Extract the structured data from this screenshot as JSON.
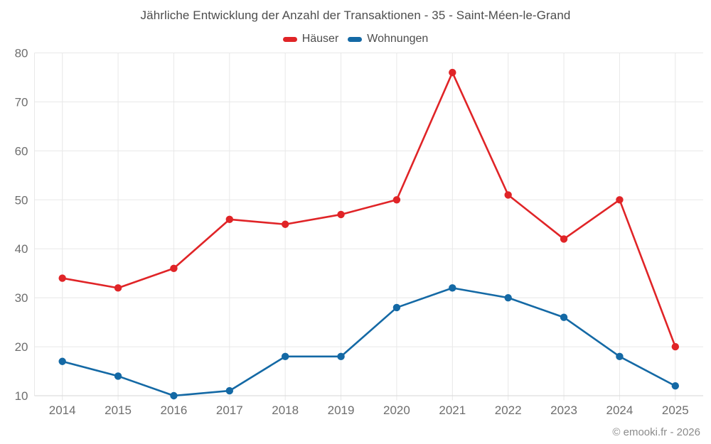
{
  "title": "Jährliche Entwicklung der Anzahl der Transaktionen - 35 - Saint-Méen-le-Grand",
  "footer": {
    "copyright": "© emooki.fr - 2026"
  },
  "colors": {
    "hauser_red": "#e02427",
    "wohnungen_blue": "#1469a5",
    "grid": "#e8e8e8",
    "axis_line": "#d6d6d6",
    "title_text": "#4d4d4d",
    "axis_text": "#6e6e6e",
    "footer_text": "#8b8b8b",
    "background": "#ffffff"
  },
  "chart_data": {
    "type": "line",
    "title": "Jährliche Entwicklung der Anzahl der Transaktionen - 35 - Saint-Méen-le-Grand",
    "x": [
      "2014",
      "2015",
      "2016",
      "2017",
      "2018",
      "2019",
      "2020",
      "2021",
      "2022",
      "2023",
      "2024",
      "2025"
    ],
    "series": [
      {
        "name": "Häuser",
        "color": "#e02427",
        "values": [
          34,
          32,
          36,
          46,
          45,
          47,
          50,
          76,
          51,
          42,
          50,
          20
        ]
      },
      {
        "name": "Wohnungen",
        "color": "#1469a5",
        "values": [
          17,
          14,
          10,
          11,
          18,
          18,
          28,
          32,
          30,
          26,
          18,
          12
        ]
      }
    ],
    "xlabel": "",
    "ylabel": "",
    "ylim": [
      10,
      80
    ],
    "yticks": [
      10,
      20,
      30,
      40,
      50,
      60,
      70,
      80
    ],
    "grid": true,
    "legend_position": "top",
    "marker": "circle"
  }
}
